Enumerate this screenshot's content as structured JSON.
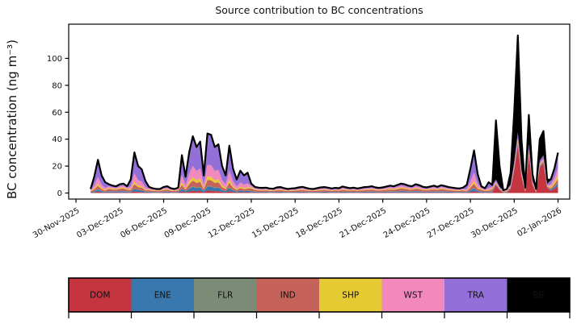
{
  "figure": {
    "title": "Source contribution to BC concentrations",
    "ylabel": "BC concentration (ng m⁻³)"
  },
  "legend": {
    "items": [
      {
        "label": "DOM",
        "color": "#c43540",
        "text_color": "#000000"
      },
      {
        "label": "ENE",
        "color": "#3878af",
        "text_color": "#000000"
      },
      {
        "label": "FLR",
        "color": "#7c8b76",
        "text_color": "#000000"
      },
      {
        "label": "IND",
        "color": "#c5625a",
        "text_color": "#000000"
      },
      {
        "label": "SHP",
        "color": "#e6ca32",
        "text_color": "#000000"
      },
      {
        "label": "WST",
        "color": "#f189bd",
        "text_color": "#000000"
      },
      {
        "label": "TRA",
        "color": "#9370d8",
        "text_color": "#000000"
      },
      {
        "label": "BB",
        "color": "#000000",
        "text_color": "#ffffff"
      }
    ]
  },
  "chart_data": {
    "type": "area",
    "stacked": true,
    "title": "Source contribution to BC concentrations",
    "ylabel": "BC concentration (ng m⁻³)",
    "x_unit": "days since 01-Dec-2025 00:00, step 0.25 day (6 h)",
    "x_start": 0,
    "x_step": 0.25,
    "x_range_days": [
      -1.5,
      32.8
    ],
    "ylim": [
      -4.5,
      125.4
    ],
    "y_ticks": [
      0,
      20,
      40,
      60,
      80,
      100
    ],
    "grid": false,
    "legend_position": "bottom-bar",
    "total_line_color": "#000000",
    "x_ticks": [
      {
        "day": -1,
        "label": "30-Nov-2025"
      },
      {
        "day": 2,
        "label": "03-Dec-2025"
      },
      {
        "day": 5,
        "label": "06-Dec-2025"
      },
      {
        "day": 8,
        "label": "09-Dec-2025"
      },
      {
        "day": 11,
        "label": "12-Dec-2025"
      },
      {
        "day": 14,
        "label": "15-Dec-2025"
      },
      {
        "day": 17,
        "label": "18-Dec-2025"
      },
      {
        "day": 20,
        "label": "21-Dec-2025"
      },
      {
        "day": 23,
        "label": "24-Dec-2025"
      },
      {
        "day": 26,
        "label": "27-Dec-2025"
      },
      {
        "day": 29,
        "label": "30-Dec-2025"
      },
      {
        "day": 32,
        "label": "02-Jan-2026"
      }
    ],
    "series": [
      {
        "name": "DOM",
        "color": "#c43540",
        "values": [
          0.21,
          0.48,
          0.98,
          0.52,
          0.32,
          0.46,
          0.39,
          0.35,
          0.46,
          0.49,
          0.35,
          0.4,
          1.2,
          0.8,
          0.7,
          0.36,
          0.32,
          0.25,
          0.21,
          0.21,
          0.32,
          0.35,
          0.25,
          0.21,
          0.28,
          1.12,
          0.48,
          1.2,
          1.68,
          1.36,
          1.52,
          0.52,
          1.76,
          1.72,
          1.36,
          1.44,
          0.8,
          0.52,
          1.4,
          0.72,
          0.4,
          0.66,
          0.52,
          0.6,
          0.49,
          0.32,
          0.28,
          0.27,
          0.28,
          0.24,
          0.22,
          0.29,
          0.31,
          0.25,
          0.21,
          0.24,
          0.25,
          0.29,
          0.32,
          0.27,
          0.22,
          0.21,
          0.25,
          0.29,
          0.31,
          0.28,
          0.24,
          0.27,
          0.25,
          0.34,
          0.29,
          0.25,
          0.28,
          0.24,
          0.27,
          0.31,
          0.32,
          0.35,
          0.29,
          0.27,
          0.29,
          0.34,
          0.39,
          0.35,
          0.42,
          0.49,
          0.46,
          0.39,
          0.35,
          0.46,
          0.41,
          0.32,
          0.29,
          0.34,
          0.39,
          0.32,
          0.41,
          0.36,
          0.31,
          0.28,
          0.25,
          0.24,
          0.28,
          0.24,
          0.72,
          1.26,
          0.56,
          0.35,
          0.25,
          0.32,
          0.42,
          6,
          2.2,
          0.14,
          0.21,
          3,
          17,
          36,
          12,
          0.5,
          29,
          6,
          0.3,
          19,
          22,
          4,
          1.7,
          3.1,
          5.1
        ]
      },
      {
        "name": "ENE",
        "color": "#3878af",
        "values": [
          0.39,
          0.84,
          1.72,
          0.91,
          0.56,
          0.85,
          0.72,
          0.65,
          0.85,
          0.91,
          0.65,
          0.7,
          2.1,
          1.4,
          1.23,
          0.63,
          0.59,
          0.46,
          0.39,
          0.39,
          0.59,
          0.65,
          0.46,
          0.39,
          0.52,
          1.96,
          0.84,
          2.1,
          2.94,
          2.38,
          2.66,
          0.91,
          3.08,
          3.01,
          2.38,
          2.52,
          1.4,
          0.91,
          2.45,
          1.26,
          0.7,
          1.16,
          0.91,
          1.05,
          0.91,
          0.59,
          0.52,
          0.49,
          0.52,
          0.44,
          0.42,
          0.55,
          0.57,
          0.47,
          0.39,
          0.44,
          0.47,
          0.55,
          0.6,
          0.49,
          0.42,
          0.39,
          0.47,
          0.55,
          0.57,
          0.52,
          0.44,
          0.49,
          0.47,
          0.62,
          0.55,
          0.47,
          0.52,
          0.44,
          0.49,
          0.57,
          0.6,
          0.65,
          0.55,
          0.49,
          0.55,
          0.62,
          0.72,
          0.65,
          0.78,
          0.91,
          0.85,
          0.72,
          0.65,
          0.85,
          0.75,
          0.6,
          0.55,
          0.62,
          0.72,
          0.6,
          0.75,
          0.68,
          0.57,
          0.52,
          0.47,
          0.44,
          0.52,
          0.42,
          1.26,
          2.21,
          0.98,
          0.65,
          0.46,
          0.56,
          0.78,
          0.5,
          0.3,
          0.26,
          0.39,
          0.4,
          0.7,
          1,
          0.6,
          0.3,
          0.8,
          0.4,
          0.3,
          0.6,
          0.7,
          0.3,
          0.7,
          1.3,
          2.1
        ]
      },
      {
        "name": "FLR",
        "color": "#7c8b76",
        "values": [
          0.06,
          0.12,
          0.25,
          0.13,
          0.08,
          0.13,
          0.11,
          0.1,
          0.13,
          0.14,
          0.1,
          0.1,
          0.3,
          0.2,
          0.18,
          0.09,
          0.09,
          0.07,
          0.06,
          0.06,
          0.09,
          0.1,
          0.07,
          0.06,
          0.08,
          0.28,
          0.12,
          0.3,
          0.42,
          0.34,
          0.38,
          0.13,
          0.44,
          0.43,
          0.34,
          0.36,
          0.2,
          0.13,
          0.35,
          0.18,
          0.1,
          0.17,
          0.13,
          0.15,
          0.14,
          0.09,
          0.08,
          0.08,
          0.08,
          0.07,
          0.06,
          0.08,
          0.09,
          0.07,
          0.06,
          0.07,
          0.07,
          0.08,
          0.09,
          0.08,
          0.06,
          0.06,
          0.07,
          0.08,
          0.09,
          0.08,
          0.07,
          0.08,
          0.07,
          0.1,
          0.08,
          0.07,
          0.08,
          0.07,
          0.08,
          0.09,
          0.09,
          0.1,
          0.08,
          0.08,
          0.08,
          0.1,
          0.11,
          0.1,
          0.12,
          0.14,
          0.13,
          0.11,
          0.1,
          0.13,
          0.12,
          0.09,
          0.08,
          0.1,
          0.11,
          0.09,
          0.12,
          0.1,
          0.09,
          0.08,
          0.07,
          0.07,
          0.08,
          0.06,
          0.18,
          0.32,
          0.14,
          0.1,
          0.07,
          0.08,
          0.12,
          0.1,
          0.1,
          0.04,
          0.06,
          0.1,
          0.1,
          0.2,
          0.1,
          0.1,
          0.1,
          0.1,
          0.1,
          0.1,
          0.1,
          0.1,
          0.1,
          0.2,
          0.3
        ]
      },
      {
        "name": "IND",
        "color": "#c5625a",
        "values": [
          0.78,
          1.2,
          2.45,
          1.3,
          0.8,
          1.69,
          1.43,
          1.3,
          1.69,
          1.82,
          1.3,
          1,
          3,
          2,
          1.75,
          0.9,
          1.17,
          0.91,
          0.78,
          0.78,
          1.17,
          1.3,
          0.91,
          0.78,
          1.04,
          2.8,
          1.2,
          3,
          4.2,
          3.4,
          3.8,
          1.3,
          4.4,
          4.3,
          3.4,
          3.6,
          2,
          1.3,
          3.5,
          1.8,
          1,
          1.65,
          1.3,
          1.5,
          1.82,
          1.17,
          1.04,
          0.99,
          1.04,
          0.88,
          0.83,
          1.09,
          1.14,
          0.94,
          0.78,
          0.88,
          0.94,
          1.09,
          1.2,
          0.99,
          0.83,
          0.78,
          0.94,
          1.09,
          1.14,
          1.04,
          0.88,
          0.99,
          0.94,
          1.25,
          1.09,
          0.94,
          1.04,
          0.88,
          0.99,
          1.14,
          1.2,
          1.3,
          1.09,
          0.99,
          1.09,
          1.25,
          1.43,
          1.3,
          1.56,
          1.82,
          1.69,
          1.43,
          1.3,
          1.69,
          1.51,
          1.2,
          1.09,
          1.25,
          1.43,
          1.2,
          1.51,
          1.35,
          1.14,
          1.04,
          0.94,
          0.88,
          1.04,
          0.6,
          1.8,
          3.15,
          1.4,
          1.3,
          0.91,
          0.8,
          1.56,
          0.6,
          0.4,
          0.52,
          0.78,
          0.6,
          0.9,
          1.3,
          0.8,
          0.5,
          1,
          0.6,
          0.5,
          0.8,
          0.9,
          0.5,
          1,
          1.8,
          3
        ]
      },
      {
        "name": "SHP",
        "color": "#e6ca32",
        "values": [
          0.36,
          0.72,
          1.47,
          0.78,
          0.48,
          0.78,
          0.66,
          0.6,
          0.78,
          0.84,
          0.6,
          0.6,
          1.8,
          1.2,
          1.05,
          0.54,
          0.54,
          0.42,
          0.36,
          0.36,
          0.54,
          0.6,
          0.42,
          0.36,
          0.48,
          1.68,
          0.72,
          1.8,
          2.52,
          2.04,
          2.28,
          0.78,
          2.64,
          2.58,
          2.04,
          2.16,
          1.2,
          0.78,
          2.1,
          1.08,
          0.6,
          0.99,
          0.78,
          0.9,
          0.84,
          0.54,
          0.48,
          0.46,
          0.48,
          0.41,
          0.38,
          0.5,
          0.53,
          0.43,
          0.36,
          0.41,
          0.43,
          0.5,
          0.55,
          0.46,
          0.38,
          0.36,
          0.43,
          0.5,
          0.53,
          0.48,
          0.41,
          0.46,
          0.43,
          0.58,
          0.5,
          0.43,
          0.48,
          0.41,
          0.46,
          0.53,
          0.55,
          0.6,
          0.5,
          0.46,
          0.5,
          0.58,
          0.66,
          0.6,
          0.72,
          0.84,
          0.78,
          0.66,
          0.6,
          0.78,
          0.7,
          0.55,
          0.5,
          0.58,
          0.66,
          0.55,
          0.7,
          0.62,
          0.53,
          0.48,
          0.43,
          0.41,
          0.48,
          0.36,
          1.08,
          1.89,
          0.84,
          0.6,
          0.42,
          0.48,
          0.72,
          0.5,
          0.3,
          0.24,
          0.36,
          0.4,
          0.7,
          1,
          0.6,
          0.3,
          0.8,
          0.4,
          0.3,
          0.6,
          0.7,
          0.3,
          1,
          1.8,
          3
        ]
      },
      {
        "name": "WST",
        "color": "#f189bd",
        "values": [
          0.51,
          2.4,
          4.9,
          2.6,
          1.6,
          1.11,
          0.94,
          0.85,
          1.11,
          1.19,
          0.85,
          2,
          6,
          4,
          3.5,
          1.8,
          0.77,
          0.6,
          0.51,
          0.51,
          0.77,
          0.85,
          0.6,
          0.51,
          0.68,
          5.6,
          2.4,
          6,
          8.4,
          6.8,
          7.6,
          2.6,
          8.8,
          8.6,
          6.8,
          7.2,
          4,
          2.6,
          7,
          3.6,
          2,
          3.3,
          2.6,
          3,
          1.19,
          0.77,
          0.68,
          0.65,
          0.68,
          0.58,
          0.54,
          0.71,
          0.75,
          0.61,
          0.51,
          0.58,
          0.61,
          0.71,
          0.78,
          0.65,
          0.54,
          0.51,
          0.61,
          0.71,
          0.75,
          0.68,
          0.58,
          0.65,
          0.61,
          0.82,
          0.71,
          0.61,
          0.68,
          0.58,
          0.65,
          0.75,
          0.78,
          0.85,
          0.71,
          0.65,
          0.71,
          0.82,
          0.94,
          0.85,
          1.02,
          1.19,
          1.11,
          0.94,
          0.85,
          1.11,
          0.99,
          0.78,
          0.71,
          0.82,
          0.94,
          0.78,
          0.99,
          0.88,
          0.75,
          0.68,
          0.61,
          0.58,
          0.68,
          1.2,
          3.6,
          6.3,
          2.8,
          0.85,
          0.6,
          1.6,
          1.02,
          0.8,
          0.5,
          0.34,
          0.51,
          0.6,
          1,
          1.5,
          0.9,
          0.4,
          1.3,
          0.6,
          0.4,
          1,
          1.2,
          0.5,
          1.7,
          3.1,
          5.1
        ]
      },
      {
        "name": "TRA",
        "color": "#9370d8",
        "values": [
          0.66,
          6.24,
          12.74,
          6.76,
          4.16,
          1.43,
          1.21,
          1.1,
          1.43,
          1.54,
          1.1,
          5.2,
          15.6,
          10.4,
          9.1,
          4.68,
          0.99,
          0.77,
          0.66,
          0.66,
          0.99,
          1.1,
          0.77,
          0.66,
          0.88,
          14.56,
          6.24,
          15.6,
          21.84,
          17.68,
          19.76,
          6.76,
          22.88,
          22.36,
          17.68,
          18.72,
          10.4,
          6.76,
          18.2,
          9.36,
          5.2,
          8.58,
          6.76,
          7.8,
          1.54,
          0.99,
          0.88,
          0.84,
          0.88,
          0.75,
          0.7,
          0.92,
          0.97,
          0.79,
          0.66,
          0.75,
          0.79,
          0.92,
          1.01,
          0.84,
          0.7,
          0.66,
          0.79,
          0.92,
          0.97,
          0.88,
          0.75,
          0.84,
          0.79,
          1.06,
          0.92,
          0.79,
          0.88,
          0.75,
          0.84,
          0.97,
          1.01,
          1.1,
          0.92,
          0.84,
          0.92,
          1.06,
          1.21,
          1.1,
          1.32,
          1.54,
          1.43,
          1.21,
          1.1,
          1.43,
          1.28,
          1.01,
          0.92,
          1.06,
          1.21,
          1.01,
          1.28,
          1.14,
          0.97,
          0.88,
          0.79,
          0.75,
          0.88,
          3.12,
          9.36,
          16.38,
          7.28,
          1.1,
          0.77,
          4.16,
          1.32,
          1.5,
          0.9,
          0.44,
          0.66,
          1,
          2.6,
          4,
          2,
          0.6,
          3,
          1.2,
          0.6,
          2.1,
          2.4,
          1,
          3.3,
          5.9,
          9.9
        ]
      },
      {
        "name": "BB",
        "color": "#000000",
        "values": [
          0.03,
          0.06,
          0.12,
          0.07,
          0.04,
          0.07,
          0.06,
          0.05,
          0.07,
          0.07,
          0.05,
          0.05,
          0.15,
          0.1,
          0.09,
          0.05,
          0.05,
          0.04,
          0.03,
          0.03,
          0.05,
          0.05,
          0.04,
          0.03,
          0.04,
          0.14,
          0.06,
          0.15,
          0.21,
          0.17,
          0.19,
          0.07,
          0.22,
          0.22,
          0.17,
          0.18,
          0.1,
          0.07,
          0.18,
          0.09,
          0.05,
          0.08,
          0.07,
          0.08,
          0.07,
          0.05,
          0.04,
          0.04,
          0.04,
          0.03,
          0.03,
          0.04,
          0.04,
          0.04,
          0.03,
          0.03,
          0.04,
          0.04,
          0.05,
          0.04,
          0.03,
          0.03,
          0.04,
          0.04,
          0.04,
          0.04,
          0.03,
          0.04,
          0.04,
          0.05,
          0.04,
          0.04,
          0.04,
          0.03,
          0.04,
          0.04,
          0.05,
          0.05,
          0.04,
          0.04,
          0.04,
          0.05,
          0.06,
          0.05,
          0.06,
          0.07,
          0.07,
          0.06,
          0.05,
          0.07,
          0.06,
          0.05,
          0.04,
          0.05,
          0.06,
          0.05,
          0.06,
          0.05,
          0.04,
          0.04,
          0.04,
          0.03,
          0.04,
          0.03,
          0.09,
          0.16,
          0.07,
          0.05,
          0.04,
          0.04,
          0.06,
          44,
          15.3,
          0.02,
          0.03,
          8.9,
          37,
          72,
          23,
          1.3,
          22,
          4.7,
          0.5,
          15.8,
          18,
          3.3,
          0.5,
          0.9,
          1.5
        ]
      }
    ]
  }
}
